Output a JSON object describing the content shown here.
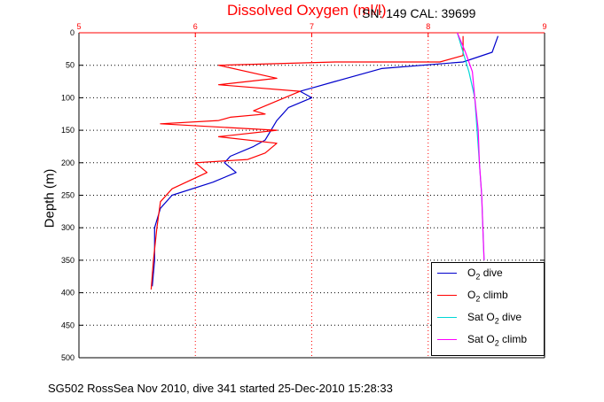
{
  "title": "Dissolved Oxygen (ml/l)",
  "serial_info": "SN: 149  CAL: 39699",
  "ylabel": "Depth (m)",
  "footer": "SG502 RossSea Nov 2010, dive 341 started 25-Dec-2010 15:28:33",
  "colors": {
    "o2_dive": "#0000cc",
    "o2_climb": "#ff0000",
    "sat_dive": "#00d6d6",
    "sat_climb": "#ff00ff",
    "top_axis": "#ff0000",
    "grid": "#000000"
  },
  "legend": [
    {
      "label": "O2 dive",
      "base": "O",
      "sub": "2",
      "suffix": " dive",
      "color_key": "o2_dive"
    },
    {
      "label": "O2 climb",
      "base": "O",
      "sub": "2",
      "suffix": " climb",
      "color_key": "o2_climb"
    },
    {
      "label": "Sat O2 dive",
      "base": "Sat O",
      "sub": "2",
      "suffix": " dive",
      "color_key": "sat_dive"
    },
    {
      "label": "Sat O2 climb",
      "base": "Sat O",
      "sub": "2",
      "suffix": " climb",
      "color_key": "sat_climb"
    }
  ],
  "chart_data": {
    "type": "line",
    "title": "Dissolved Oxygen (ml/l)",
    "xlabel": "",
    "ylabel": "Depth (m)",
    "xlim": [
      5,
      9
    ],
    "ylim": [
      0,
      500
    ],
    "y_reversed": true,
    "x_axis_position": "top",
    "x_ticks": [
      5,
      6,
      7,
      8,
      9
    ],
    "y_ticks": [
      0,
      50,
      100,
      150,
      200,
      250,
      300,
      350,
      400,
      450,
      500
    ],
    "grid": true,
    "legend_position": "bottom-right",
    "series": [
      {
        "name": "O2 dive",
        "color": "#0000cc",
        "x": [
          8.6,
          8.55,
          8.3,
          7.6,
          7.2,
          7.0,
          6.9,
          7.0,
          6.8,
          6.75,
          6.7,
          6.65,
          6.6,
          6.5,
          6.3,
          6.25,
          6.35,
          6.15,
          5.8,
          5.7,
          5.65,
          5.65,
          5.63
        ],
        "y": [
          5,
          30,
          45,
          55,
          75,
          85,
          90,
          100,
          115,
          125,
          135,
          150,
          165,
          175,
          190,
          200,
          215,
          230,
          250,
          270,
          300,
          350,
          390
        ]
      },
      {
        "name": "O2 climb",
        "color": "#ff0000",
        "x": [
          8.3,
          8.3,
          8.1,
          7.2,
          6.2,
          6.7,
          6.2,
          6.9,
          6.5,
          6.6,
          6.3,
          6.2,
          5.7,
          6.7,
          6.2,
          6.7,
          6.6,
          6.45,
          6.0,
          6.1,
          5.8,
          5.7,
          5.67,
          5.64,
          5.62
        ],
        "y": [
          5,
          35,
          45,
          45,
          50,
          70,
          80,
          90,
          120,
          125,
          130,
          135,
          140,
          150,
          160,
          170,
          185,
          195,
          200,
          215,
          240,
          260,
          300,
          350,
          395
        ]
      },
      {
        "name": "Sat O2 dive",
        "color": "#00d6d6",
        "x": [
          8.25,
          8.3,
          8.35,
          8.4,
          8.42,
          8.44,
          8.46,
          8.47,
          8.48
        ],
        "y": [
          0,
          30,
          60,
          100,
          150,
          200,
          250,
          300,
          350
        ]
      },
      {
        "name": "Sat O2 climb",
        "color": "#ff00ff",
        "x": [
          8.25,
          8.32,
          8.38,
          8.4,
          8.43,
          8.44,
          8.46,
          8.47,
          8.48
        ],
        "y": [
          0,
          30,
          60,
          100,
          150,
          200,
          250,
          300,
          350
        ]
      }
    ]
  }
}
